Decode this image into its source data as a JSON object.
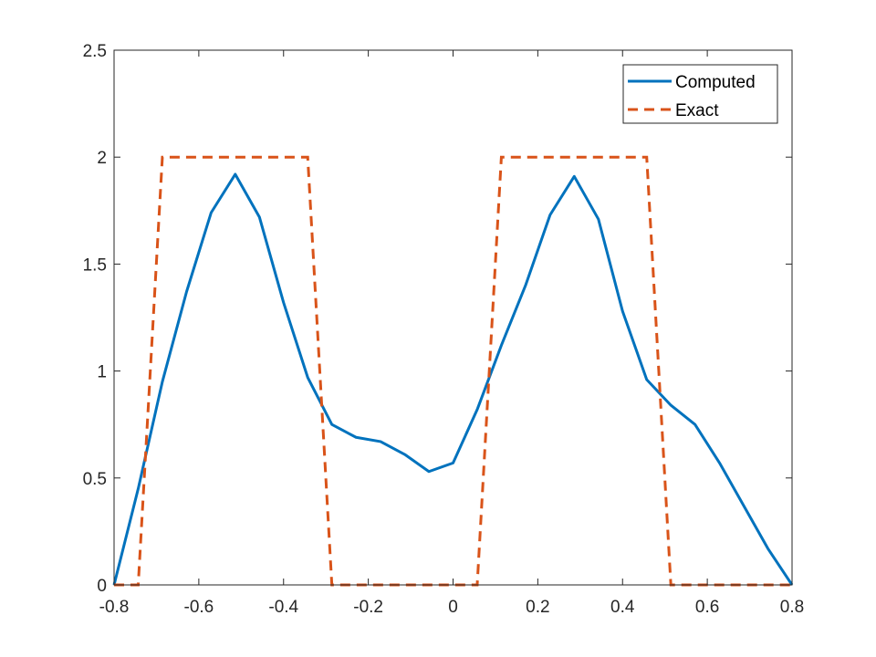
{
  "chart_data": {
    "type": "line",
    "title": "",
    "xlabel": "",
    "ylabel": "",
    "xlim": [
      -0.8,
      0.8
    ],
    "ylim": [
      0,
      2.5
    ],
    "xticks": [
      -0.8,
      -0.6,
      -0.4,
      -0.2,
      0,
      0.2,
      0.4,
      0.6,
      0.8
    ],
    "xtick_labels": [
      "-0.8",
      "-0.6",
      "-0.4",
      "-0.2",
      "0",
      "0.2",
      "0.4",
      "0.6",
      "0.8"
    ],
    "yticks": [
      0,
      0.5,
      1,
      1.5,
      2,
      2.5
    ],
    "ytick_labels": [
      "0",
      "0.5",
      "1",
      "1.5",
      "2",
      "2.5"
    ],
    "grid": false,
    "legend_position": "top-right",
    "series": [
      {
        "name": "Computed",
        "color": "#0072BD",
        "style": "solid",
        "x": [
          -0.8,
          -0.743,
          -0.686,
          -0.629,
          -0.571,
          -0.514,
          -0.457,
          -0.4,
          -0.343,
          -0.286,
          -0.229,
          -0.171,
          -0.114,
          -0.057,
          0.0,
          0.057,
          0.114,
          0.171,
          0.229,
          0.286,
          0.343,
          0.4,
          0.457,
          0.514,
          0.571,
          0.629,
          0.686,
          0.743,
          0.8
        ],
        "y": [
          0.0,
          0.45,
          0.95,
          1.37,
          1.74,
          1.92,
          1.72,
          1.32,
          0.97,
          0.75,
          0.69,
          0.67,
          0.61,
          0.53,
          0.57,
          0.82,
          1.12,
          1.4,
          1.73,
          1.91,
          1.71,
          1.28,
          0.96,
          0.84,
          0.75,
          0.57,
          0.37,
          0.17,
          0.0
        ]
      },
      {
        "name": "Exact",
        "color": "#D95319",
        "style": "dashed",
        "x": [
          -0.8,
          -0.743,
          -0.686,
          -0.629,
          -0.571,
          -0.514,
          -0.457,
          -0.4,
          -0.343,
          -0.286,
          -0.229,
          -0.171,
          -0.114,
          -0.057,
          0.057,
          0.114,
          0.171,
          0.229,
          0.286,
          0.343,
          0.4,
          0.457,
          0.514,
          0.571,
          0.629,
          0.686,
          0.743,
          0.8
        ],
        "y": [
          0,
          0,
          2,
          2,
          2,
          2,
          2,
          2,
          2,
          0,
          0,
          0,
          0,
          0,
          0,
          2,
          2,
          2,
          2,
          2,
          2,
          2,
          0,
          0,
          0,
          0,
          0,
          0
        ]
      }
    ]
  }
}
